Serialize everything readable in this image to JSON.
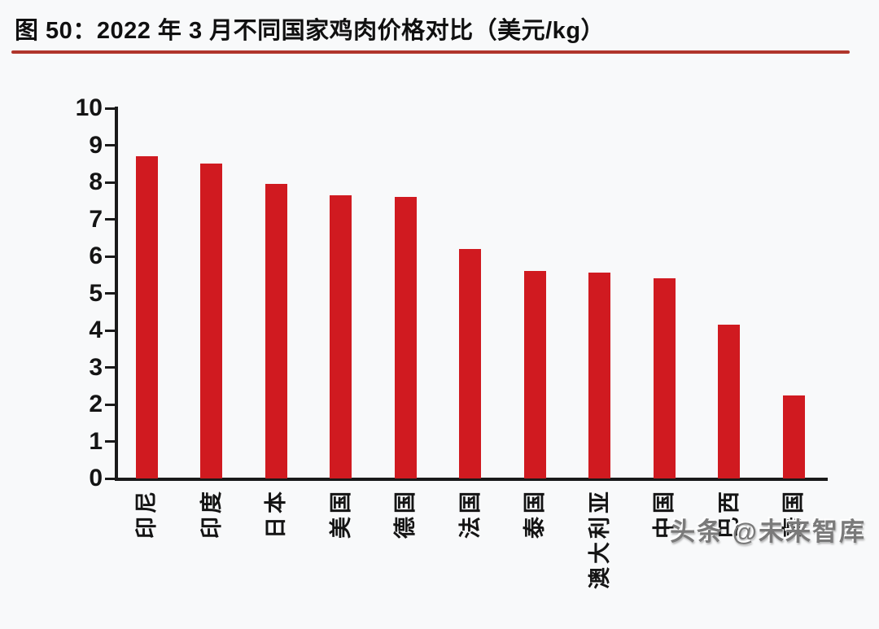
{
  "title": {
    "text": "图 50：2022 年 3 月不同国家鸡肉价格对比（美元/kg）"
  },
  "watermark": {
    "text": "头条 @未来智库"
  },
  "colors": {
    "bar": "#d01a20",
    "axis": "#1a1a1a",
    "underline": "#b0352b",
    "background": "#f8f9fa",
    "watermark": "#7a7a7a"
  },
  "chart_data": {
    "type": "bar",
    "title": "图 50：2022 年 3 月不同国家鸡肉价格对比（美元/kg）",
    "categories": [
      "印尼",
      "印度",
      "日本",
      "美国",
      "德国",
      "法国",
      "泰国",
      "澳大利亚",
      "中国",
      "巴西",
      "泰国"
    ],
    "values": [
      8.7,
      8.5,
      7.95,
      7.65,
      7.6,
      6.2,
      5.6,
      5.55,
      5.4,
      4.15,
      2.25
    ],
    "unit": "美元/kg",
    "xlabel": "",
    "ylabel": "",
    "ylim": [
      0,
      10
    ],
    "yticks": [
      0,
      1,
      2,
      3,
      4,
      5,
      6,
      7,
      8,
      9,
      10
    ],
    "grid": false,
    "legend": null,
    "bar_color": "#d01a20",
    "category_label_rotation": -90
  }
}
